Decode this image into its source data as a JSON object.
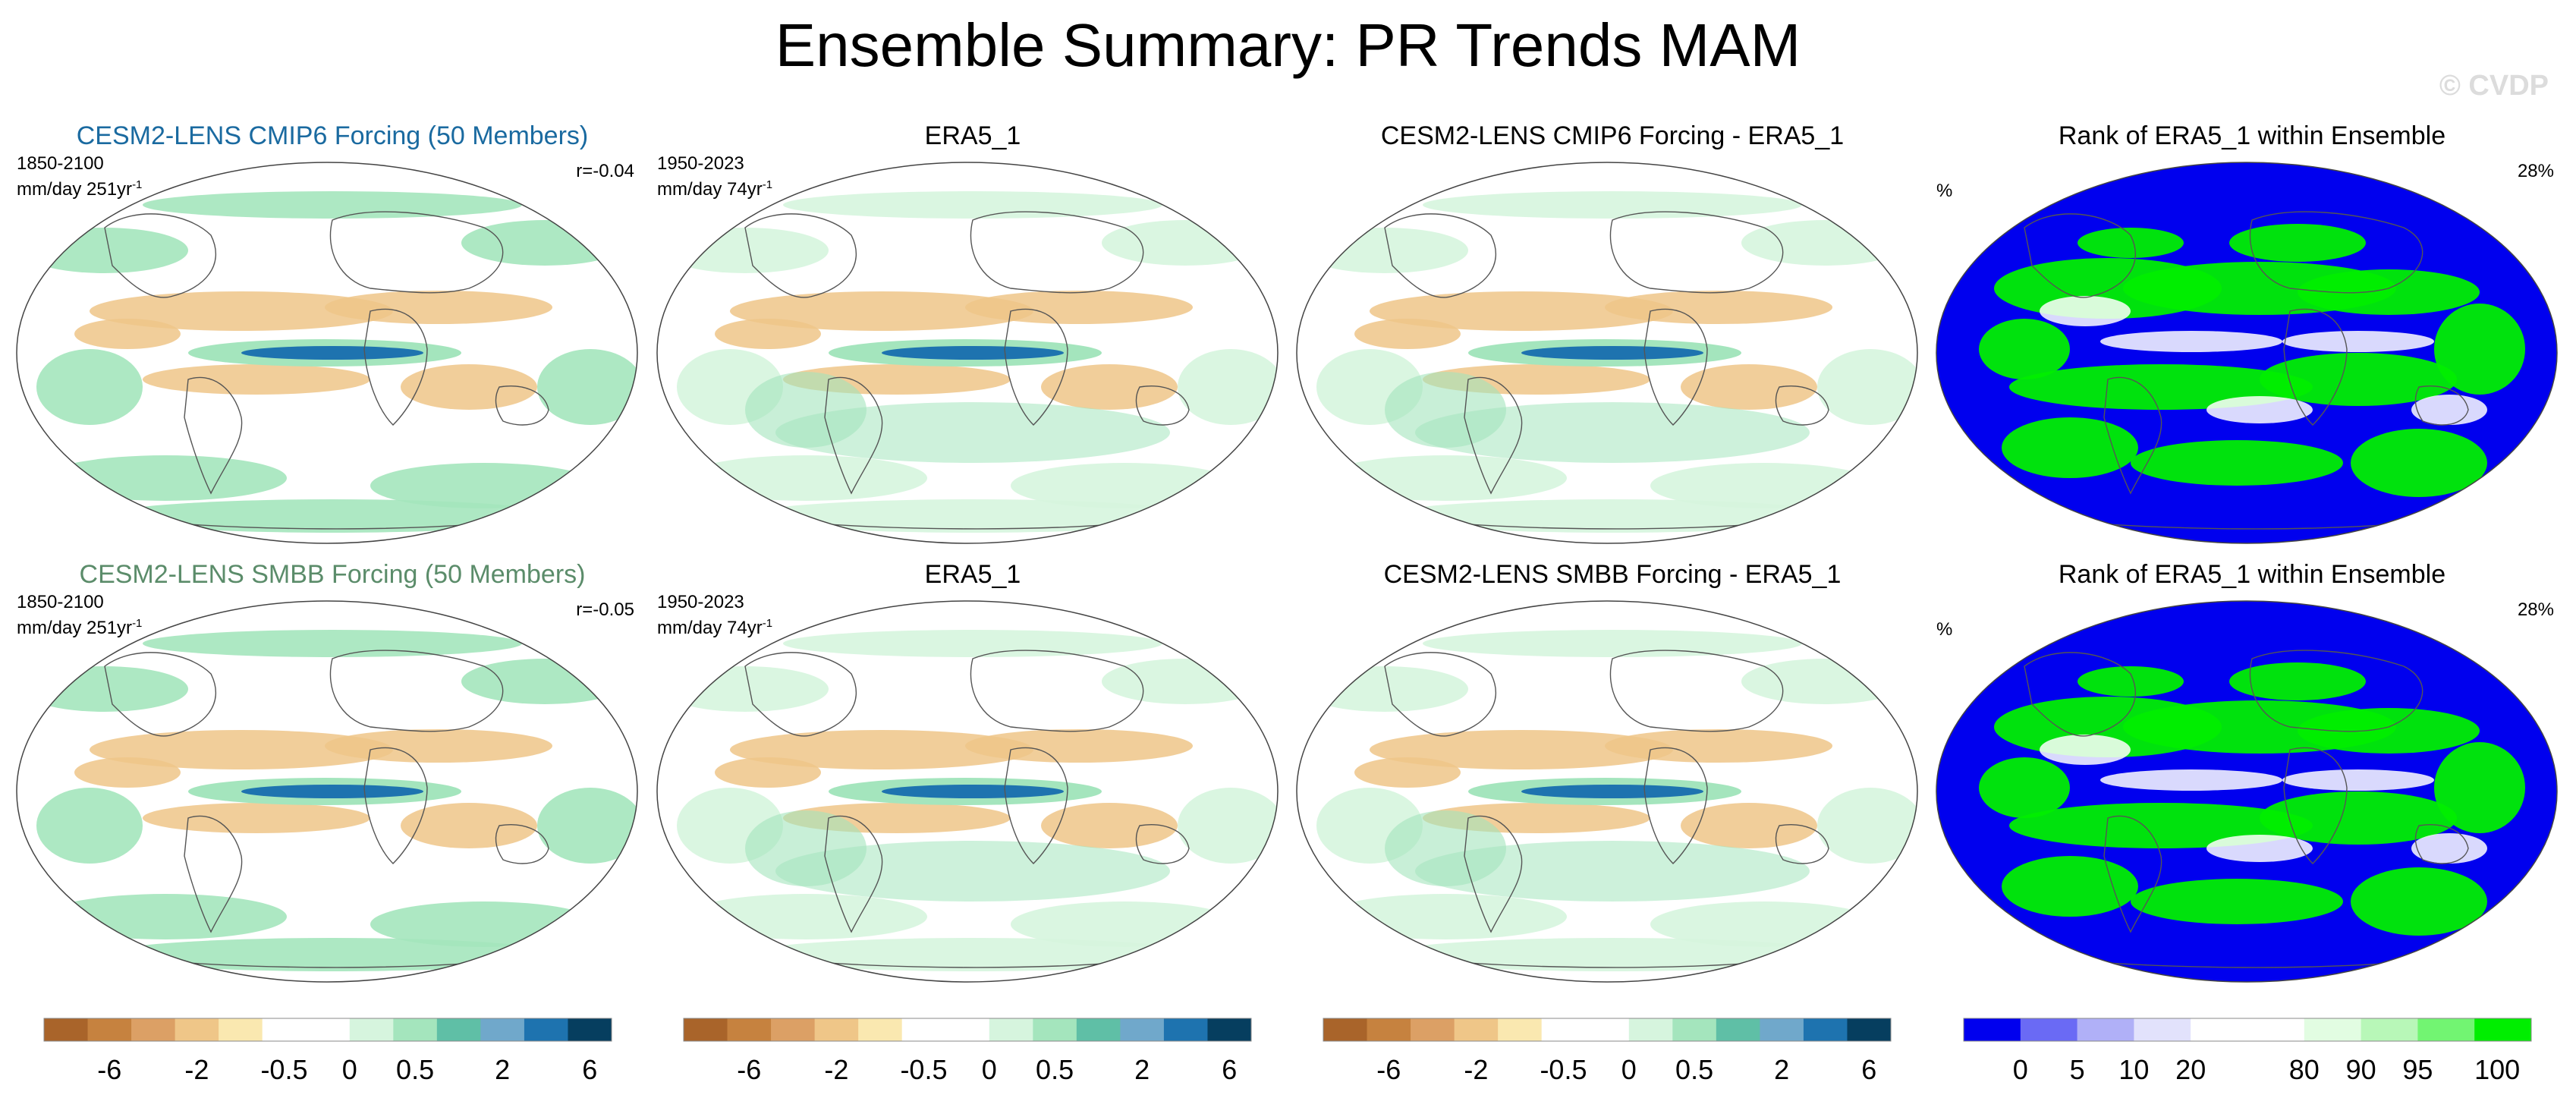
{
  "title": "Ensemble Summary: PR Trends MAM",
  "watermark": "© CVDP",
  "rows": [
    {
      "model_title": "CESM2-LENS CMIP6 Forcing (50 Members)",
      "model_period": "1850-2100",
      "model_units": "mm/day 251yr",
      "model_corr": "r=-0.04",
      "obs_title": "ERA5_1",
      "obs_period": "1950-2023",
      "obs_units": "mm/day 74yr",
      "diff_title": "CESM2-LENS CMIP6 Forcing - ERA5_1",
      "rank_title": "Rank of ERA5_1 within Ensemble",
      "rank_unit": "%",
      "rank_pct": "28%"
    },
    {
      "model_title": "CESM2-LENS SMBB Forcing (50 Members)",
      "model_period": "1850-2100",
      "model_units": "mm/day 251yr",
      "model_corr": "r=-0.05",
      "obs_title": "ERA5_1",
      "obs_period": "1950-2023",
      "obs_units": "mm/day 74yr",
      "diff_title": "CESM2-LENS SMBB Forcing - ERA5_1",
      "rank_title": "Rank of ERA5_1 within Ensemble",
      "rank_unit": "%",
      "rank_pct": "28%"
    }
  ],
  "units_superscript": "-1",
  "colorbar_trend": {
    "colors": [
      "#a9642a",
      "#c6823f",
      "#dca065",
      "#efc688",
      "#fae8b0",
      "#ffffff",
      "#ffffff",
      "#d6f5de",
      "#a4e5bd",
      "#5fbfa6",
      "#70a8cb",
      "#1e73af",
      "#063e5f"
    ],
    "labels": [
      "-6",
      "-2",
      "-0.5",
      "0",
      "0.5",
      "2",
      "6"
    ]
  },
  "colorbar_rank": {
    "colors": [
      "#0000ee",
      "#6a6af5",
      "#b0b0f7",
      "#e2e2fc",
      "#ffffff",
      "#ffffff",
      "#e2fde2",
      "#b8f7b8",
      "#72f572",
      "#00ee00"
    ],
    "labels": [
      "0",
      "5",
      "10",
      "20",
      "80",
      "90",
      "95",
      "100"
    ]
  },
  "palette": {
    "ocean_model": "#ffffff",
    "wet": "#a4e5bd",
    "light_wet": "#d6f5de",
    "dry": "#efc688",
    "strong_wet": "#1e73af",
    "rank_low": "#0000ee",
    "rank_high": "#00ee00"
  }
}
